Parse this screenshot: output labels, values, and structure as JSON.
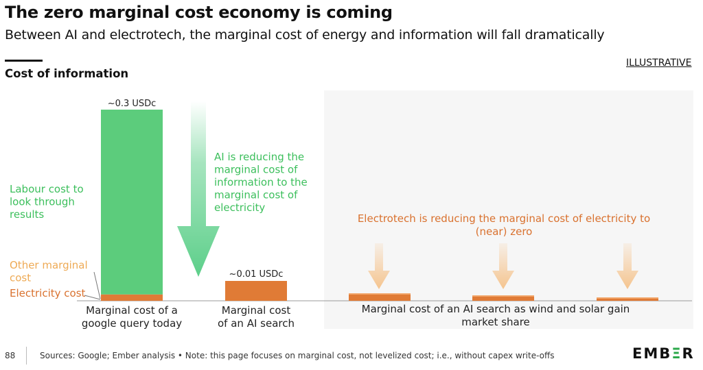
{
  "header": {
    "title": "The zero marginal cost economy is coming",
    "subtitle": "Between AI and electrotech, the marginal cost of energy and information will fall dramatically",
    "section_title": "Cost of information",
    "badge": "ILLUSTRATIVE"
  },
  "colors": {
    "labour": "#5ccc7c",
    "electricity": "#e07b36",
    "electricity_light": "#f2a66a",
    "arrow_green": "#5dcf8a",
    "arrow_orange": "#f5c48e",
    "text_green": "#3cbf5c",
    "text_orange": "#d9712e",
    "text_orange_light": "#eeaa55",
    "panel": "#f6f6f6"
  },
  "chart_data": {
    "type": "bar",
    "title": "Cost of information",
    "categories": [
      "Marginal cost of a google query today",
      "Marginal cost of an AI search",
      "Marginal cost of an AI search as wind and solar gain market share (1)",
      "Marginal cost of an AI search as wind and solar gain market share (2)",
      "Marginal cost of an AI search as wind and solar gain market share (3)"
    ],
    "unit": "USDc",
    "ylim": [
      0,
      0.3
    ],
    "series": [
      {
        "name": "Electricity cost",
        "values": [
          0.01,
          0.01,
          0.004,
          0.0025,
          0.0015
        ]
      },
      {
        "name": "Labour cost to look through results",
        "values": [
          0.29,
          0,
          0,
          0,
          0
        ]
      }
    ],
    "data_labels": [
      "~0.3 USDc",
      "~0.01 USDc"
    ],
    "annotations": {
      "labour": [
        "Labour cost to",
        "look through",
        "results"
      ],
      "other": [
        "Other marginal",
        "cost"
      ],
      "electricity": "Electricity cost",
      "ai_arrow": [
        "AI is reducing the",
        "marginal cost of",
        "information to the",
        "marginal cost of",
        "electricity"
      ],
      "electrotech": [
        "Electrotech is reducing the marginal cost of electricity to",
        "(near) zero"
      ]
    },
    "x_labels": {
      "google": [
        "Marginal cost of a",
        "google query today"
      ],
      "ai": [
        "Marginal cost",
        "of an AI search"
      ],
      "renew": [
        "Marginal cost of an AI search as wind and solar gain",
        "market share"
      ]
    }
  },
  "footer": {
    "page_number": "88",
    "sources": "Sources: Google; Ember analysis • Note: this page focuses on marginal cost, not levelized cost; i.e., without capex write-offs",
    "logo_pre": "EMB",
    "logo_e": "Ξ",
    "logo_post": "R"
  }
}
